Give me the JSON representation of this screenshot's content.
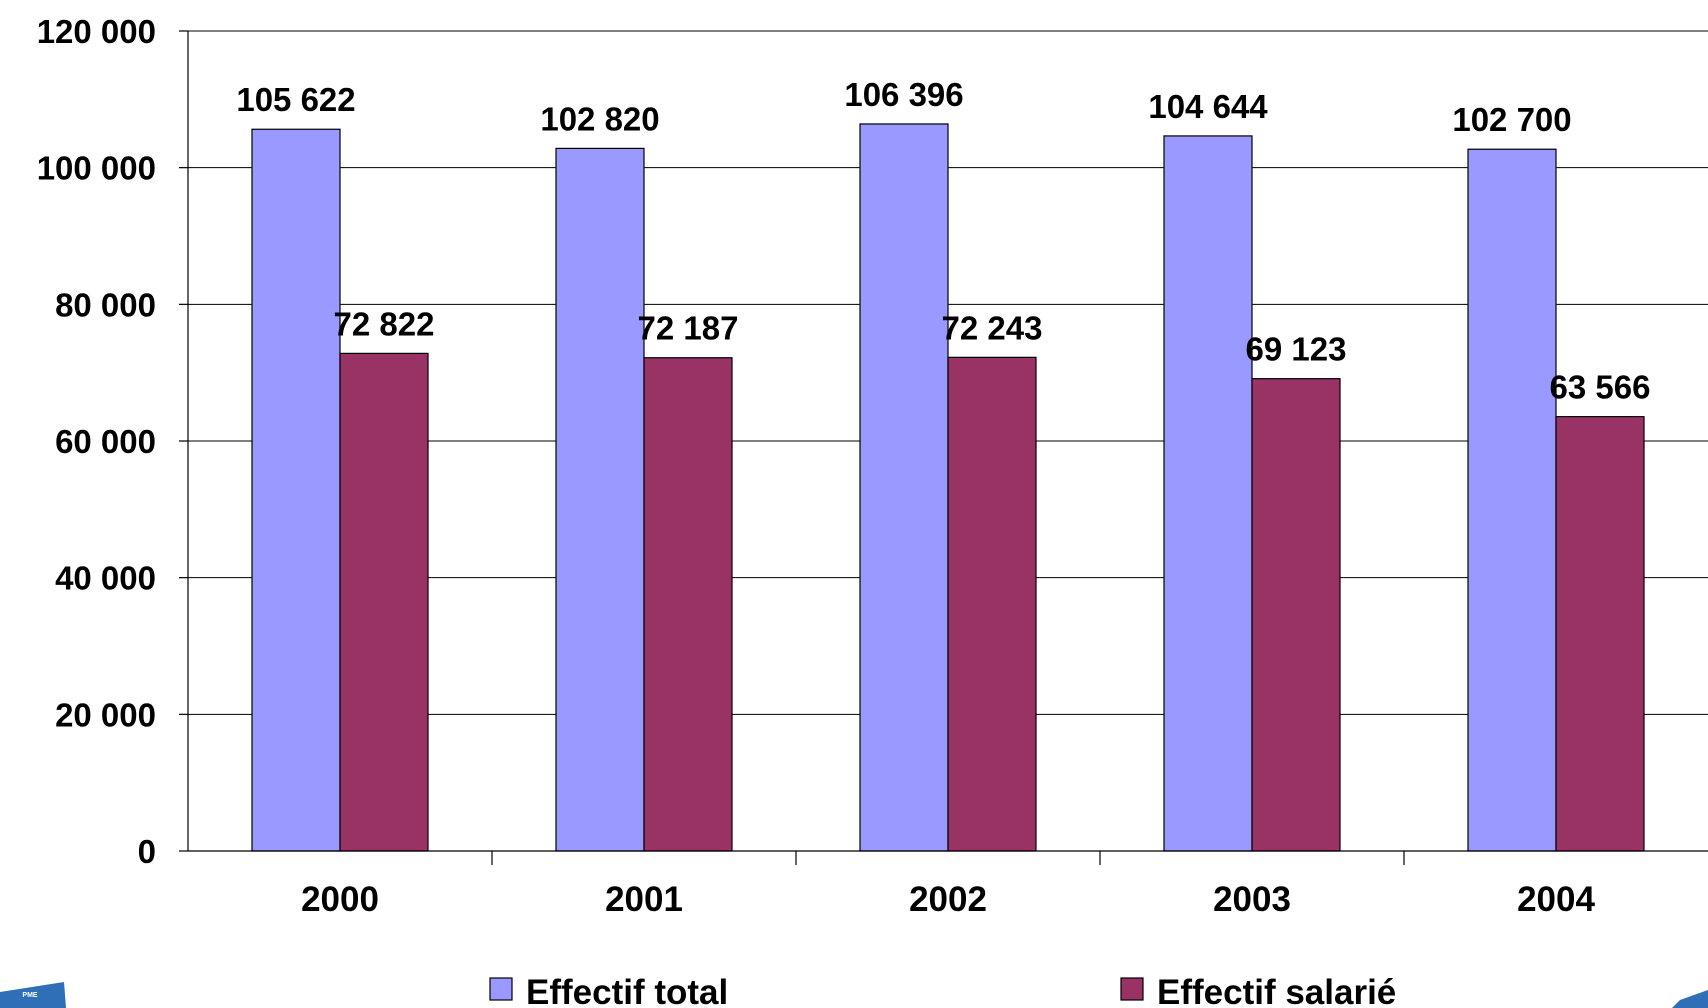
{
  "chart_data": {
    "type": "bar",
    "categories": [
      "2000",
      "2001",
      "2002",
      "2003",
      "2004"
    ],
    "series": [
      {
        "name": "Effectif total",
        "values": [
          105622,
          102820,
          106396,
          104644,
          102700
        ],
        "labels": [
          "105 622",
          "102 820",
          "106 396",
          "104 644",
          "102 700"
        ],
        "color": "#9999FF"
      },
      {
        "name": "Effectif salarié",
        "values": [
          72822,
          72187,
          72243,
          69123,
          63566
        ],
        "labels": [
          "72 822",
          "72 187",
          "72 243",
          "69 123",
          "63 566"
        ],
        "color": "#993366"
      }
    ],
    "ylim": [
      0,
      120000
    ],
    "yticks": [
      0,
      20000,
      40000,
      60000,
      80000,
      100000,
      120000
    ],
    "ytick_labels": [
      "0",
      "20 000",
      "40 000",
      "60 000",
      "80 000",
      "100 000",
      "120 000"
    ],
    "grid": true,
    "legend_position": "bottom"
  },
  "logos": {
    "left_text": "PME",
    "left_color": "#2F6FB8",
    "right_color": "#2F6FB8"
  }
}
